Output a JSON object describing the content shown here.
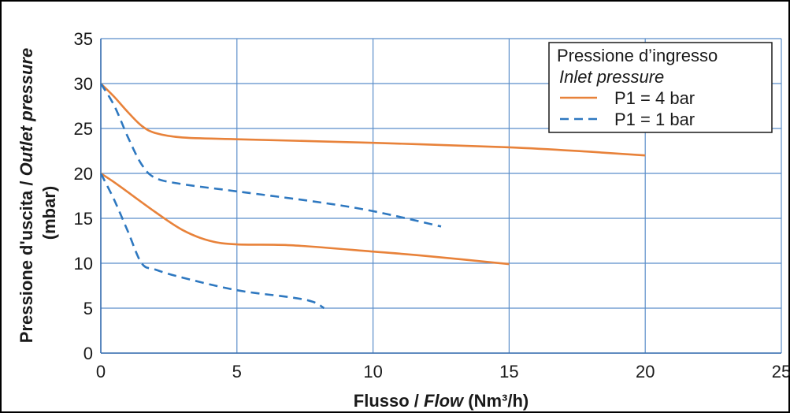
{
  "chart_data": {
    "type": "line",
    "xlabel": {
      "plain": "Flusso / ",
      "italic": "Flow",
      "unit": " (Nm³/h)"
    },
    "ylabel": {
      "line1_plain": "Pressione d'uscita / ",
      "line1_italic": "Outlet pressure",
      "line2": "(mbar)"
    },
    "xlim": [
      0,
      25
    ],
    "ylim": [
      0,
      35
    ],
    "x_ticks": [
      "0",
      "5",
      "10",
      "15",
      "20",
      "25"
    ],
    "y_ticks": [
      "0",
      "5",
      "10",
      "15",
      "20",
      "25",
      "30",
      "35"
    ],
    "grid": true,
    "legend": {
      "position": "top-right",
      "title_line1": "Pressione d’ingresso",
      "title_line2": "Inlet pressure"
    },
    "series": [
      {
        "name": "P1 = 4 bar",
        "color": "#e8823a",
        "dash": "solid",
        "curves": [
          [
            [
              0,
              30
            ],
            [
              0.5,
              28.5
            ],
            [
              1,
              26.8
            ],
            [
              1.5,
              25.3
            ],
            [
              2,
              24.5
            ],
            [
              3,
              24.0
            ],
            [
              5,
              23.8
            ],
            [
              10,
              23.4
            ],
            [
              15,
              22.9
            ],
            [
              18,
              22.4
            ],
            [
              20,
              22.0
            ]
          ],
          [
            [
              0,
              20
            ],
            [
              0.5,
              19.0
            ],
            [
              1,
              17.9
            ],
            [
              2,
              15.7
            ],
            [
              3,
              13.7
            ],
            [
              4,
              12.5
            ],
            [
              5,
              12.1
            ],
            [
              7,
              12.0
            ],
            [
              10,
              11.3
            ],
            [
              12,
              10.8
            ],
            [
              15,
              9.9
            ]
          ]
        ]
      },
      {
        "name": "P1 = 1 bar",
        "color": "#2e78c0",
        "dash": "dashed",
        "curves": [
          [
            [
              0,
              30
            ],
            [
              0.5,
              27.5
            ],
            [
              1,
              24.0
            ],
            [
              1.5,
              21.0
            ],
            [
              2,
              19.5
            ],
            [
              3,
              18.8
            ],
            [
              5,
              18.0
            ],
            [
              8,
              16.8
            ],
            [
              10,
              15.8
            ],
            [
              12.5,
              14.1
            ]
          ],
          [
            [
              0,
              20
            ],
            [
              0.5,
              17.0
            ],
            [
              1,
              13.5
            ],
            [
              1.5,
              10.0
            ],
            [
              2,
              9.3
            ],
            [
              3,
              8.4
            ],
            [
              5,
              7.0
            ],
            [
              7,
              6.2
            ],
            [
              7.8,
              5.7
            ],
            [
              8.2,
              5.0
            ]
          ]
        ]
      }
    ]
  }
}
